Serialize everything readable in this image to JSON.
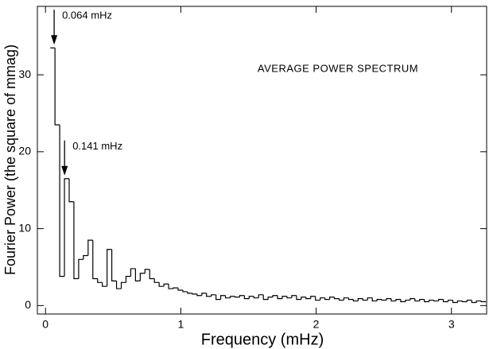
{
  "chart_data": {
    "type": "step",
    "title": "AVERAGE POWER SPECTRUM",
    "x_label": "Frequency (mHz)",
    "y_label": "Fourier Power (the square of mmag)",
    "x": [
      0.035,
      0.07,
      0.105,
      0.14,
      0.175,
      0.21,
      0.245,
      0.28,
      0.315,
      0.35,
      0.385,
      0.42,
      0.455,
      0.49,
      0.525,
      0.56,
      0.595,
      0.63,
      0.665,
      0.7,
      0.735,
      0.77,
      0.805,
      0.84,
      0.875,
      0.91,
      0.945,
      0.98,
      1.015,
      1.05,
      1.085,
      1.12,
      1.155,
      1.19,
      1.225,
      1.26,
      1.295,
      1.33,
      1.365,
      1.4,
      1.435,
      1.47,
      1.505,
      1.54,
      1.575,
      1.61,
      1.645,
      1.68,
      1.715,
      1.75,
      1.785,
      1.82,
      1.855,
      1.89,
      1.925,
      1.96,
      1.995,
      2.03,
      2.065,
      2.1,
      2.135,
      2.17,
      2.205,
      2.24,
      2.275,
      2.31,
      2.345,
      2.38,
      2.415,
      2.45,
      2.485,
      2.52,
      2.555,
      2.59,
      2.625,
      2.66,
      2.695,
      2.73,
      2.765,
      2.8,
      2.835,
      2.87,
      2.905,
      2.94,
      2.975,
      3.01,
      3.045,
      3.08,
      3.115,
      3.15,
      3.185,
      3.22
    ],
    "values": [
      33.5,
      23.5,
      3.8,
      16.5,
      13.5,
      3.5,
      6.0,
      6.5,
      8.5,
      3.5,
      3.0,
      2.5,
      7.3,
      3.2,
      2.2,
      3.0,
      3.8,
      4.8,
      3.2,
      4.2,
      4.7,
      3.5,
      3.0,
      2.5,
      2.8,
      2.2,
      2.3,
      2.0,
      1.8,
      1.6,
      1.5,
      1.3,
      1.6,
      1.2,
      1.4,
      0.8,
      1.3,
      1.0,
      1.2,
      1.1,
      1.3,
      0.9,
      1.2,
      1.0,
      1.4,
      0.8,
      1.1,
      1.3,
      0.9,
      1.2,
      1.0,
      1.3,
      0.8,
      1.1,
      0.9,
      1.2,
      0.7,
      1.0,
      0.8,
      1.1,
      0.9,
      0.7,
      1.0,
      0.8,
      0.6,
      0.9,
      0.7,
      1.0,
      0.6,
      0.8,
      0.7,
      0.9,
      0.6,
      0.8,
      0.5,
      0.7,
      0.9,
      0.6,
      0.8,
      0.5,
      0.7,
      0.6,
      0.8,
      0.5,
      0.7,
      0.4,
      0.6,
      0.5,
      0.7,
      0.4,
      0.6,
      0.5
    ],
    "color": "#000000",
    "annotations": [
      {
        "text": "0.064 mHz",
        "x": 0.064
      },
      {
        "text": "0.141 mHz",
        "x": 0.141
      }
    ],
    "xlim": [
      -0.06,
      3.26
    ],
    "xticks": [
      0,
      1,
      2,
      3
    ],
    "ylim": [
      -1.1,
      38.9
    ],
    "yticks": [
      0,
      10,
      20,
      30
    ],
    "grid": false
  }
}
